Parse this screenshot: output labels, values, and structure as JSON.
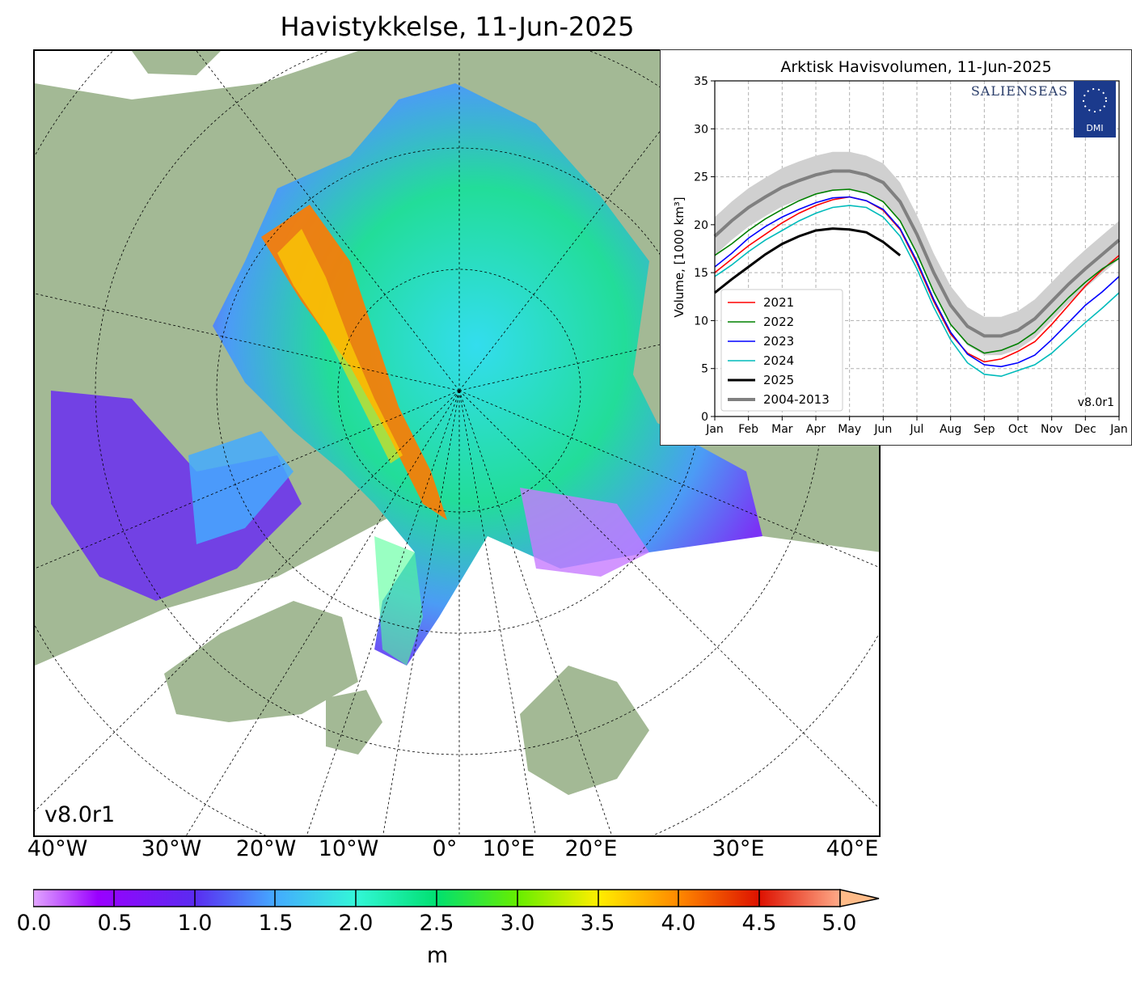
{
  "title": "Havistykkelse, 11-Jun-2025",
  "version": "v8.0r1",
  "map": {
    "lon_labels": [
      "40°W",
      "30°W",
      "20°W",
      "10°W",
      "0°",
      "10°E",
      "20°E",
      "30°E",
      "40°E"
    ],
    "colors": {
      "land": "#a3b995",
      "ocean": "#ffffff",
      "rivers": "#8aa8e8",
      "grid": "#000000"
    }
  },
  "colorbar": {
    "ticks": [
      "0.0",
      "0.5",
      "1.0",
      "1.5",
      "2.0",
      "2.5",
      "3.0",
      "3.5",
      "4.0",
      "4.5",
      "5.0"
    ],
    "unit": "m",
    "range": [
      0,
      5
    ],
    "extend": "max"
  },
  "inset": {
    "title": "Arktisk Havisvolumen, 11-Jun-2025",
    "logo_text": "SALIENSEAS",
    "logo2_text": "DMI",
    "version": "v8.0r1"
  },
  "chart_data": {
    "type": "line",
    "title": "Arktisk Havisvolumen, 11-Jun-2025",
    "ylabel": "Volume, [1000 km³]",
    "xlabel": "",
    "x_ticks": [
      "Jan",
      "Feb",
      "Mar",
      "Apr",
      "May",
      "Jun",
      "Jul",
      "Aug",
      "Sep",
      "Oct",
      "Nov",
      "Dec",
      "Jan"
    ],
    "y_ticks": [
      "0",
      "5",
      "10",
      "15",
      "20",
      "25",
      "30",
      "35"
    ],
    "ylim": [
      0,
      35
    ],
    "grid": true,
    "legend_position": "bottom-left",
    "months": [
      0,
      0.5,
      1,
      1.5,
      2,
      2.5,
      3,
      3.5,
      4,
      4.5,
      5,
      5.5,
      6,
      6.5,
      7,
      7.5,
      8,
      8.5,
      9,
      9.5,
      10,
      10.5,
      11,
      11.5,
      12
    ],
    "series": [
      {
        "name": "2021",
        "color": "#ff0000",
        "values": [
          15.0,
          16.4,
          17.8,
          19.0,
          20.2,
          21.2,
          22.0,
          22.6,
          22.9,
          22.5,
          21.5,
          19.5,
          16.0,
          12.0,
          8.6,
          6.6,
          5.7,
          6.0,
          6.8,
          7.8,
          9.6,
          11.6,
          13.6,
          15.3,
          16.8
        ]
      },
      {
        "name": "2022",
        "color": "#008000",
        "values": [
          16.8,
          18.0,
          19.4,
          20.6,
          21.6,
          22.5,
          23.2,
          23.6,
          23.7,
          23.3,
          22.4,
          20.4,
          17.0,
          13.0,
          9.6,
          7.6,
          6.6,
          6.9,
          7.6,
          8.8,
          10.6,
          12.4,
          14.0,
          15.4,
          16.5
        ]
      },
      {
        "name": "2023",
        "color": "#0000ff",
        "values": [
          15.6,
          17.0,
          18.6,
          19.8,
          20.8,
          21.6,
          22.3,
          22.8,
          22.9,
          22.5,
          21.6,
          19.6,
          16.2,
          12.2,
          8.8,
          6.5,
          5.4,
          5.2,
          5.6,
          6.4,
          8.0,
          9.8,
          11.6,
          13.0,
          14.6
        ]
      },
      {
        "name": "2024",
        "color": "#00bbbb",
        "values": [
          14.6,
          15.8,
          17.2,
          18.4,
          19.4,
          20.4,
          21.2,
          21.8,
          22.0,
          21.8,
          20.8,
          18.8,
          15.4,
          11.4,
          8.0,
          5.6,
          4.4,
          4.2,
          4.8,
          5.4,
          6.6,
          8.2,
          9.8,
          11.3,
          12.9
        ]
      },
      {
        "name": "2025",
        "color": "#000000",
        "values": [
          12.9,
          14.3,
          15.6,
          16.9,
          18.0,
          18.8,
          19.4,
          19.6,
          19.5,
          19.2,
          18.2,
          16.8
        ]
      },
      {
        "name": "2004-2013",
        "color": "#808080",
        "values": [
          18.8,
          20.4,
          21.8,
          22.9,
          23.9,
          24.6,
          25.2,
          25.6,
          25.6,
          25.2,
          24.4,
          22.4,
          19.0,
          15.0,
          11.6,
          9.4,
          8.4,
          8.4,
          9.0,
          10.2,
          12.0,
          13.8,
          15.4,
          16.9,
          18.4
        ]
      }
    ],
    "band": {
      "name": "2004-2013 range",
      "color": "#d0d0d0",
      "upper": [
        20.8,
        22.4,
        23.8,
        24.9,
        25.9,
        26.6,
        27.2,
        27.6,
        27.6,
        27.2,
        26.4,
        24.4,
        21.0,
        17.0,
        13.6,
        11.4,
        10.4,
        10.4,
        11.0,
        12.2,
        14.0,
        15.8,
        17.4,
        18.9,
        20.4
      ],
      "lower": [
        16.8,
        18.4,
        19.8,
        20.9,
        21.9,
        22.6,
        23.2,
        23.6,
        23.6,
        23.2,
        22.4,
        20.4,
        17.0,
        13.0,
        9.6,
        7.4,
        6.4,
        6.4,
        7.0,
        8.2,
        10.0,
        11.8,
        13.4,
        14.9,
        16.4
      ]
    }
  }
}
